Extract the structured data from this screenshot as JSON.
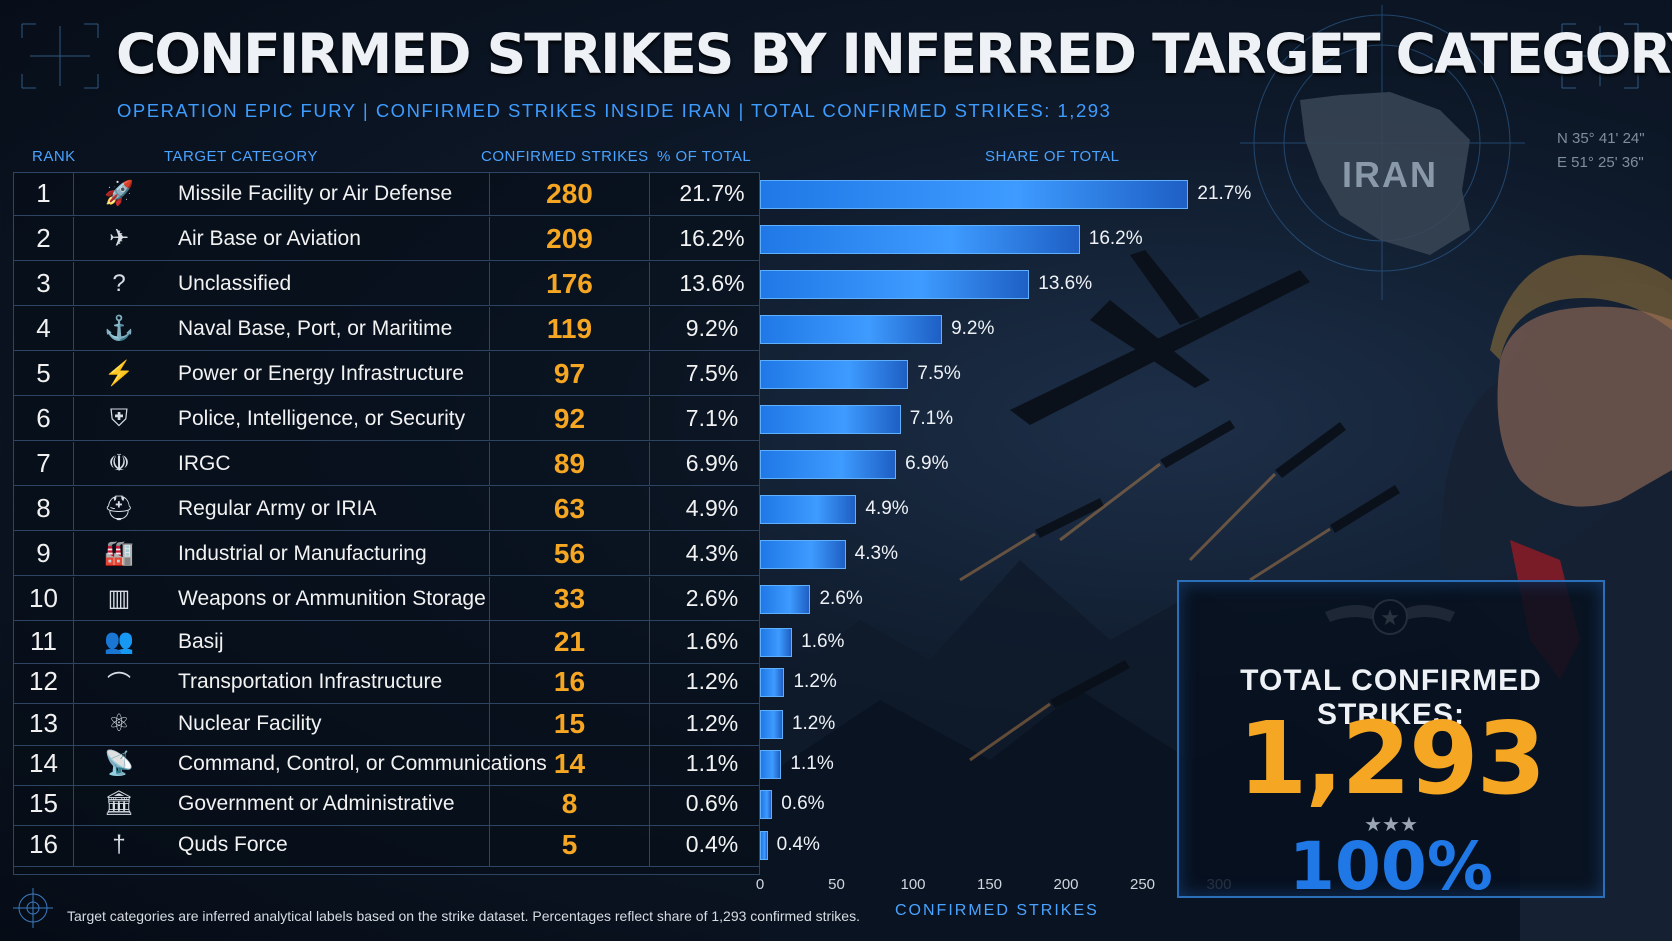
{
  "title": "CONFIRMED STRIKES BY INFERRED TARGET CATEGORY",
  "subtitle": "OPERATION EPIC FURY  |  CONFIRMED STRIKES INSIDE IRAN  |  TOTAL CONFIRMED STRIKES: 1,293",
  "headers": {
    "rank": "RANK",
    "category": "TARGET CATEGORY",
    "strikes": "CONFIRMED STRIKES",
    "pct": "% OF TOTAL",
    "share": "SHARE OF TOTAL"
  },
  "map": {
    "label": "IRAN",
    "coord_lat": "N 35° 41' 24\"",
    "coord_lon": "E 51° 25' 36\""
  },
  "total": {
    "label": "TOTAL CONFIRMED STRIKES:",
    "value": "1,293",
    "stars": "★★★",
    "pct": "100%"
  },
  "footnote": "Target categories are inferred analytical labels based on the strike dataset. Percentages reflect share of 1,293 confirmed strikes.",
  "chart_data": {
    "type": "bar",
    "orientation": "horizontal",
    "title": "SHARE OF TOTAL",
    "xlabel": "CONFIRMED STRIKES",
    "xlim": [
      0,
      300
    ],
    "xticks": [
      "0",
      "50",
      "100",
      "150",
      "200",
      "250",
      "300"
    ],
    "rows": [
      {
        "rank": "1",
        "icon": "missile-launcher-icon",
        "glyph": "🚀",
        "category": "Missile Facility or Air Defense",
        "strikes": 280,
        "pct": "21.7%"
      },
      {
        "rank": "2",
        "icon": "airplane-icon",
        "glyph": "✈",
        "category": "Air Base or Aviation",
        "strikes": 209,
        "pct": "16.2%"
      },
      {
        "rank": "3",
        "icon": "unknown-folder-icon",
        "glyph": "?",
        "category": "Unclassified",
        "strikes": 176,
        "pct": "13.6%"
      },
      {
        "rank": "4",
        "icon": "warship-icon",
        "glyph": "⚓",
        "category": "Naval Base, Port, or Maritime",
        "strikes": 119,
        "pct": "9.2%"
      },
      {
        "rank": "5",
        "icon": "power-tower-icon",
        "glyph": "⚡",
        "category": "Power or Energy Infrastructure",
        "strikes": 97,
        "pct": "7.5%"
      },
      {
        "rank": "6",
        "icon": "security-shield-icon",
        "glyph": "⛨",
        "category": "Police, Intelligence, or Security",
        "strikes": 92,
        "pct": "7.1%"
      },
      {
        "rank": "7",
        "icon": "irgc-emblem-icon",
        "glyph": "☫",
        "category": "IRGC",
        "strikes": 89,
        "pct": "6.9%"
      },
      {
        "rank": "8",
        "icon": "helmet-icon",
        "glyph": "⛑",
        "category": "Regular Army or IRIA",
        "strikes": 63,
        "pct": "4.9%"
      },
      {
        "rank": "9",
        "icon": "factory-icon",
        "glyph": "🏭",
        "category": "Industrial or Manufacturing",
        "strikes": 56,
        "pct": "4.3%"
      },
      {
        "rank": "10",
        "icon": "ammo-storage-icon",
        "glyph": "▥",
        "category": "Weapons or Ammunition Storage",
        "strikes": 33,
        "pct": "2.6%"
      },
      {
        "rank": "11",
        "icon": "people-group-icon",
        "glyph": "👥",
        "category": "Basij",
        "strikes": 21,
        "pct": "1.6%"
      },
      {
        "rank": "12",
        "icon": "bridge-icon",
        "glyph": "⌒",
        "category": "Transportation Infrastructure",
        "strikes": 16,
        "pct": "1.2%"
      },
      {
        "rank": "13",
        "icon": "atom-icon",
        "glyph": "⚛",
        "category": "Nuclear Facility",
        "strikes": 15,
        "pct": "1.2%"
      },
      {
        "rank": "14",
        "icon": "satellite-dish-icon",
        "glyph": "📡",
        "category": "Command, Control, or Communications",
        "strikes": 14,
        "pct": "1.1%"
      },
      {
        "rank": "15",
        "icon": "government-building-icon",
        "glyph": "🏛",
        "category": "Government or Administrative",
        "strikes": 8,
        "pct": "0.6%"
      },
      {
        "rank": "16",
        "icon": "dagger-icon",
        "glyph": "†",
        "category": "Quds Force",
        "strikes": 5,
        "pct": "0.4%"
      }
    ]
  }
}
